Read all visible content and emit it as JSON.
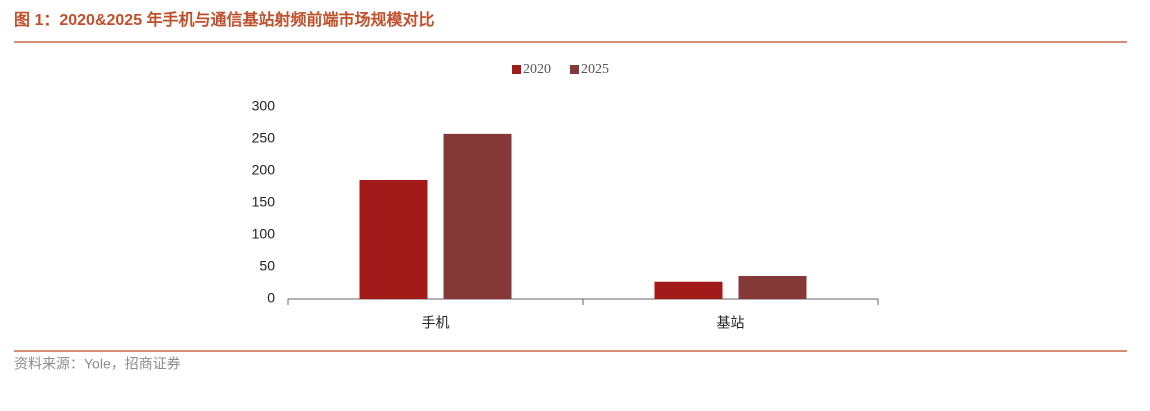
{
  "chart_data": {
    "type": "bar",
    "title": "图 1：2020&2025 年手机与通信基站射频前端市场规模对比",
    "source": "资料来源：Yole，招商证券",
    "categories": [
      "手机",
      "基站"
    ],
    "series": [
      {
        "name": "2020",
        "color": "#a31a1a",
        "values": [
          186,
          27
        ]
      },
      {
        "name": "2025",
        "color": "#843838",
        "values": [
          258,
          36
        ]
      }
    ],
    "ylim": [
      0,
      300
    ],
    "yticks": [
      0,
      50,
      100,
      150,
      200,
      250,
      300
    ],
    "grid": false,
    "legend": "top"
  }
}
